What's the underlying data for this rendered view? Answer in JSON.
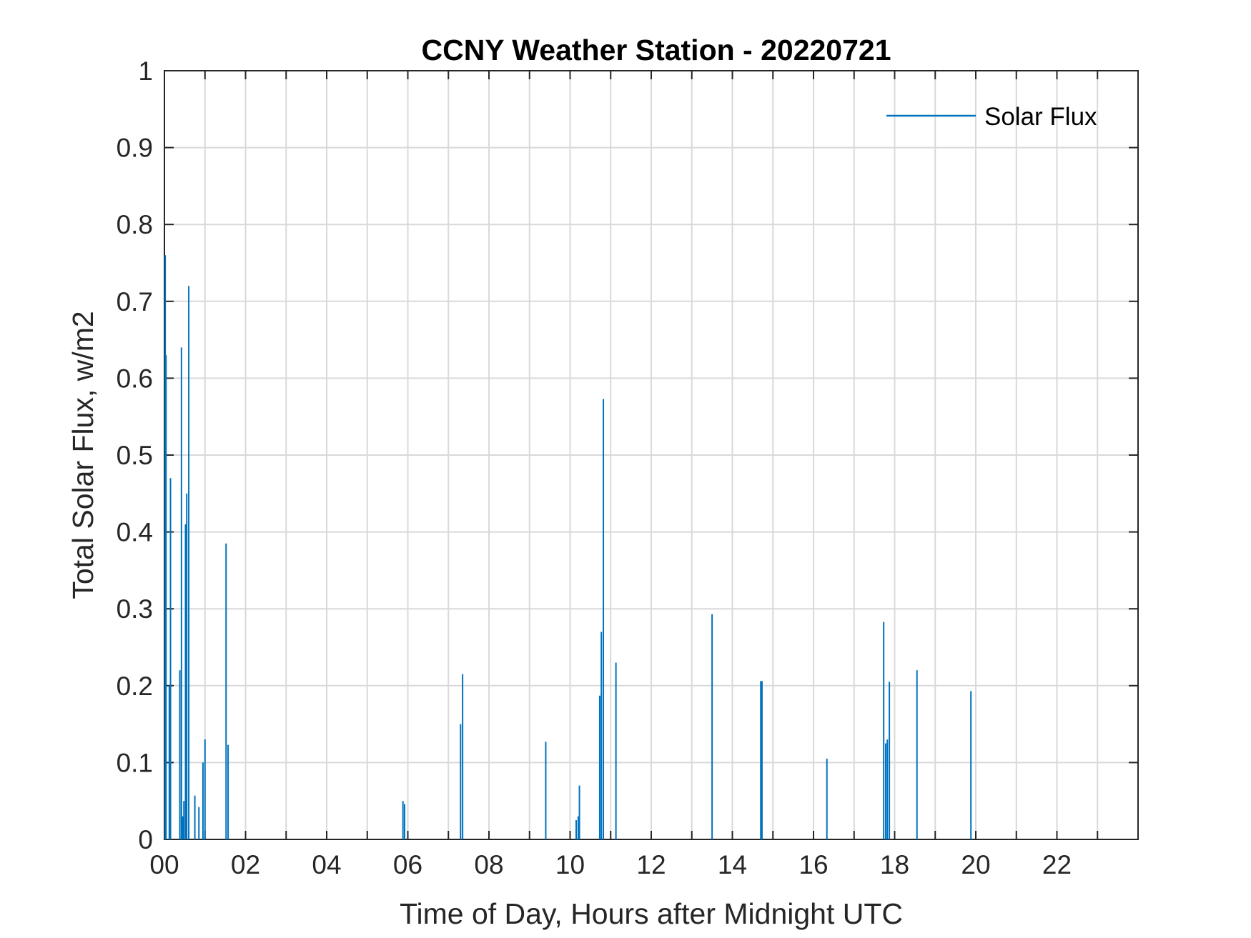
{
  "chart_data": {
    "type": "bar",
    "title": "CCNY Weather Station - 20220721",
    "xlabel": "Time of Day, Hours after Midnight UTC",
    "ylabel": "Total Solar Flux, w/m2",
    "xlim": [
      0,
      24
    ],
    "ylim": [
      0,
      1
    ],
    "grid": true,
    "legend_position": "top-right",
    "x_ticks": [
      0,
      2,
      4,
      6,
      8,
      10,
      12,
      14,
      16,
      18,
      20,
      22
    ],
    "x_tick_labels": [
      "00",
      "02",
      "04",
      "06",
      "08",
      "10",
      "12",
      "14",
      "16",
      "18",
      "20",
      "22"
    ],
    "y_ticks": [
      0,
      0.1,
      0.2,
      0.3,
      0.4,
      0.5,
      0.6,
      0.7,
      0.8,
      0.9,
      1
    ],
    "y_tick_labels": [
      "0",
      "0.1",
      "0.2",
      "0.3",
      "0.4",
      "0.5",
      "0.6",
      "0.7",
      "0.8",
      "0.9",
      "1"
    ],
    "series": [
      {
        "name": "Solar Flux",
        "color": "#0072BD",
        "points": [
          [
            0.02,
            0.76
          ],
          [
            0.04,
            0.63
          ],
          [
            0.12,
            0.2
          ],
          [
            0.15,
            0.47
          ],
          [
            0.38,
            0.22
          ],
          [
            0.42,
            0.64
          ],
          [
            0.45,
            0.03
          ],
          [
            0.48,
            0.05
          ],
          [
            0.52,
            0.41
          ],
          [
            0.55,
            0.45
          ],
          [
            0.6,
            0.72
          ],
          [
            0.75,
            0.057
          ],
          [
            0.85,
            0.042
          ],
          [
            0.95,
            0.1
          ],
          [
            1.0,
            0.13
          ],
          [
            1.52,
            0.385
          ],
          [
            1.57,
            0.123
          ],
          [
            5.88,
            0.05
          ],
          [
            5.92,
            0.046
          ],
          [
            7.3,
            0.15
          ],
          [
            7.35,
            0.215
          ],
          [
            9.4,
            0.127
          ],
          [
            10.15,
            0.025
          ],
          [
            10.2,
            0.03
          ],
          [
            10.23,
            0.07
          ],
          [
            10.73,
            0.187
          ],
          [
            10.77,
            0.27
          ],
          [
            10.82,
            0.573
          ],
          [
            11.13,
            0.23
          ],
          [
            13.5,
            0.293
          ],
          [
            14.7,
            0.206
          ],
          [
            14.73,
            0.206
          ],
          [
            16.33,
            0.105
          ],
          [
            17.73,
            0.283
          ],
          [
            17.78,
            0.125
          ],
          [
            17.82,
            0.13
          ],
          [
            17.87,
            0.205
          ],
          [
            18.55,
            0.22
          ],
          [
            19.88,
            0.193
          ]
        ]
      }
    ]
  }
}
